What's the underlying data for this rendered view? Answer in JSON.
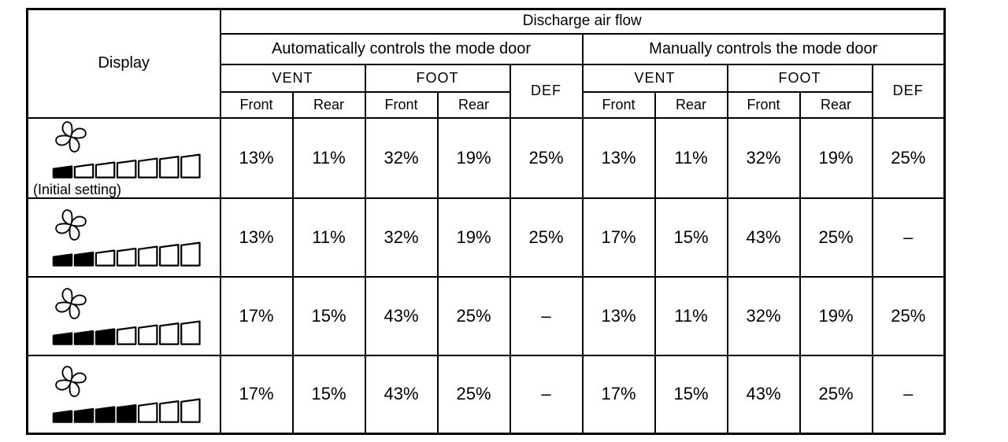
{
  "table": {
    "title": "Discharge air flow",
    "display_header": "Display",
    "group_auto": "Automatically controls the mode door",
    "group_manual": "Manually controls the mode door",
    "vent": "VENT",
    "foot": "FOOT",
    "def": "DEF",
    "front": "Front",
    "rear": "Rear",
    "rows": [
      {
        "display": {
          "icon": "fan-icon",
          "bars_total": 7,
          "bars_filled": 1,
          "caption": "(Initial setting)"
        },
        "values": [
          "13%",
          "11%",
          "32%",
          "19%",
          "25%",
          "13%",
          "11%",
          "32%",
          "19%",
          "25%"
        ]
      },
      {
        "display": {
          "icon": "fan-icon",
          "bars_total": 7,
          "bars_filled": 2
        },
        "values": [
          "13%",
          "11%",
          "32%",
          "19%",
          "25%",
          "17%",
          "15%",
          "43%",
          "25%",
          "–"
        ]
      },
      {
        "display": {
          "icon": "fan-icon",
          "bars_total": 7,
          "bars_filled": 3
        },
        "values": [
          "17%",
          "15%",
          "43%",
          "25%",
          "–",
          "13%",
          "11%",
          "32%",
          "19%",
          "25%"
        ]
      },
      {
        "display": {
          "icon": "fan-icon",
          "bars_total": 7,
          "bars_filled": 4
        },
        "values": [
          "17%",
          "15%",
          "43%",
          "25%",
          "–",
          "17%",
          "15%",
          "43%",
          "25%",
          "–"
        ]
      }
    ]
  },
  "colors": {
    "border": "#000000",
    "background": "#ffffff",
    "bar_filled": "#000000",
    "bar_empty": "#ffffff",
    "text": "#000000"
  }
}
